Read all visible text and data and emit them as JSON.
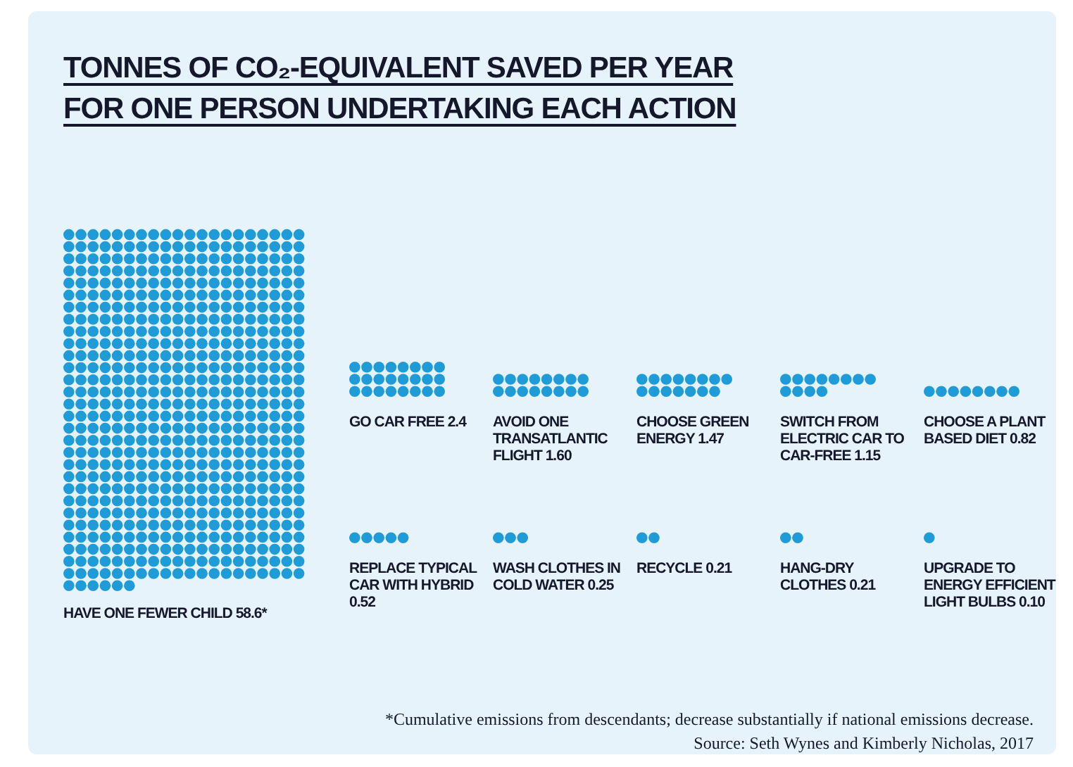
{
  "chart_data": {
    "type": "other",
    "title": "TONNES OF CO₂-EQUIVALENT SAVED PER YEAR FOR ONE PERSON UNDERTAKING EACH ACTION",
    "categories": [
      "HAVE ONE FEWER CHILD",
      "GO CAR FREE",
      "AVOID ONE TRANSATLANTIC FLIGHT",
      "CHOOSE GREEN ENERGY",
      "SWITCH FROM ELECTRIC CAR TO CAR-FREE",
      "CHOOSE A PLANT BASED DIET",
      "REPLACE TYPICAL CAR WITH HYBRID",
      "WASH CLOTHES IN COLD WATER",
      "RECYCLE",
      "HANG-DRY CLOTHES",
      "UPGRADE TO ENERGY EFFICIENT LIGHT BULBS"
    ],
    "values": [
      58.6,
      2.4,
      1.6,
      1.47,
      1.15,
      0.82,
      0.52,
      0.25,
      0.21,
      0.21,
      0.1
    ],
    "value_labels": [
      "58.6*",
      "2.4",
      "1.60",
      "1.47",
      "1.15",
      "0.82",
      "0.52",
      "0.25",
      "0.21",
      "0.21",
      "0.10"
    ],
    "color": "#1f9bd7",
    "annotations": [
      "*Cumulative emissions from descendants; decrease substantially if national emissions decrease.",
      "Source: Seth Wynes and Kimberly Nicholas, 2017"
    ]
  }
}
